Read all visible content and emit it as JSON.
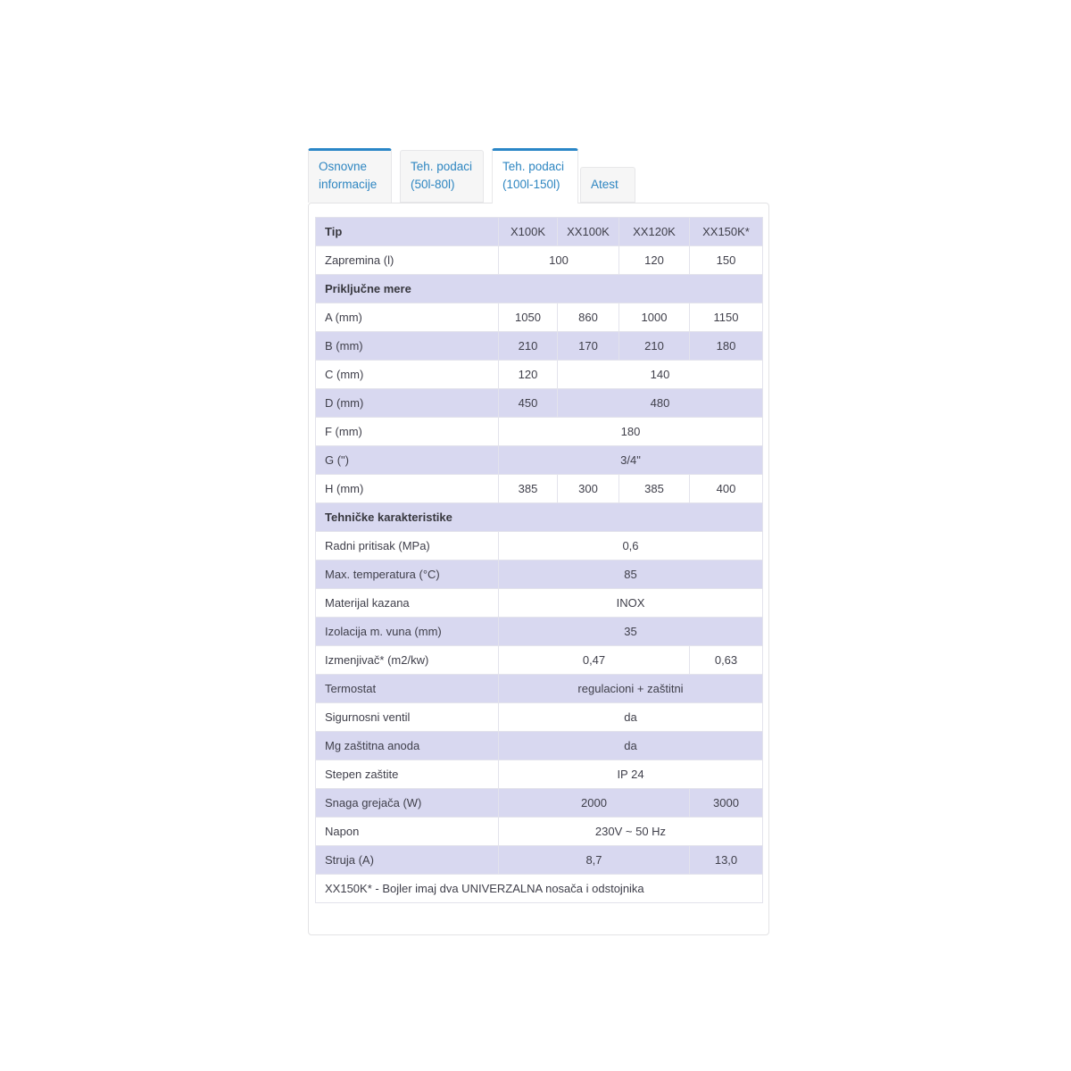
{
  "tabs": [
    {
      "line1": "Osnovne",
      "line2": "informacije"
    },
    {
      "line1": "Teh. podaci",
      "line2": "(50l-80l)"
    },
    {
      "line1": "Teh. podaci",
      "line2": "(100l-150l)"
    },
    {
      "line1": "Atest",
      "line2": ""
    }
  ],
  "colors": {
    "accent_blue": "#2a86c7",
    "tab_text": "#2e86c1",
    "row_lavender": "#d8d8f0",
    "row_white": "#ffffff",
    "cell_border": "#e3e3ec",
    "text": "#3f3f4a"
  },
  "table": {
    "columns": [
      "Tip",
      "X100K",
      "XX100K",
      "XX120K",
      "XX150K*"
    ],
    "rows": [
      {
        "type": "header",
        "label": "Tip",
        "cells": [
          {
            "text": "X100K",
            "span": 1
          },
          {
            "text": "XX100K",
            "span": 1
          },
          {
            "text": "XX120K",
            "span": 1
          },
          {
            "text": "XX150K*",
            "span": 1
          }
        ]
      },
      {
        "type": "data",
        "label": "Zapremina (l)",
        "cells": [
          {
            "text": "100",
            "span": 2
          },
          {
            "text": "120",
            "span": 1
          },
          {
            "text": "150",
            "span": 1
          }
        ]
      },
      {
        "type": "section",
        "label": "Priključne mere"
      },
      {
        "type": "data",
        "label": "A (mm)",
        "cells": [
          {
            "text": "1050",
            "span": 1
          },
          {
            "text": "860",
            "span": 1
          },
          {
            "text": "1000",
            "span": 1
          },
          {
            "text": "1150",
            "span": 1
          }
        ]
      },
      {
        "type": "data",
        "label": "B (mm)",
        "cells": [
          {
            "text": "210",
            "span": 1
          },
          {
            "text": "170",
            "span": 1
          },
          {
            "text": "210",
            "span": 1
          },
          {
            "text": "180",
            "span": 1
          }
        ]
      },
      {
        "type": "data",
        "label": "C (mm)",
        "cells": [
          {
            "text": "120",
            "span": 1
          },
          {
            "text": "140",
            "span": 3
          }
        ]
      },
      {
        "type": "data",
        "label": "D (mm)",
        "cells": [
          {
            "text": "450",
            "span": 1
          },
          {
            "text": "480",
            "span": 3
          }
        ]
      },
      {
        "type": "data",
        "label": "F (mm)",
        "cells": [
          {
            "text": "180",
            "span": 4
          }
        ]
      },
      {
        "type": "data",
        "label": "G (\")",
        "cells": [
          {
            "text": "3/4\"",
            "span": 4
          }
        ]
      },
      {
        "type": "data",
        "label": "H (mm)",
        "cells": [
          {
            "text": "385",
            "span": 1
          },
          {
            "text": "300",
            "span": 1
          },
          {
            "text": "385",
            "span": 1
          },
          {
            "text": "400",
            "span": 1
          }
        ]
      },
      {
        "type": "section",
        "label": "Tehničke karakteristike"
      },
      {
        "type": "data",
        "label": "Radni pritisak (MPa)",
        "cells": [
          {
            "text": "0,6",
            "span": 4
          }
        ]
      },
      {
        "type": "data",
        "label": "Max. temperatura (°C)",
        "cells": [
          {
            "text": "85",
            "span": 4
          }
        ]
      },
      {
        "type": "data",
        "label": "Materijal kazana",
        "cells": [
          {
            "text": "INOX",
            "span": 4
          }
        ]
      },
      {
        "type": "data",
        "label": "Izolacija m. vuna (mm)",
        "cells": [
          {
            "text": "35",
            "span": 4
          }
        ]
      },
      {
        "type": "data",
        "label": "Izmenjivač* (m2/kw)",
        "cells": [
          {
            "text": "0,47",
            "span": 3
          },
          {
            "text": "0,63",
            "span": 1
          }
        ]
      },
      {
        "type": "data",
        "label": "Termostat",
        "cells": [
          {
            "text": "regulacioni + zaštitni",
            "span": 4
          }
        ]
      },
      {
        "type": "data",
        "label": "Sigurnosni ventil",
        "cells": [
          {
            "text": "da",
            "span": 4
          }
        ]
      },
      {
        "type": "data",
        "label": "Mg zaštitna anoda",
        "cells": [
          {
            "text": "da",
            "span": 4
          }
        ]
      },
      {
        "type": "data",
        "label": "Stepen zaštite",
        "cells": [
          {
            "text": "IP 24",
            "span": 4
          }
        ]
      },
      {
        "type": "data",
        "label": "Snaga grejača (W)",
        "cells": [
          {
            "text": "2000",
            "span": 3
          },
          {
            "text": "3000",
            "span": 1
          }
        ]
      },
      {
        "type": "data",
        "label": "Napon",
        "cells": [
          {
            "text": "230V ~ 50 Hz",
            "span": 4
          }
        ]
      },
      {
        "type": "data",
        "label": "Struja (A)",
        "cells": [
          {
            "text": "8,7",
            "span": 3
          },
          {
            "text": "13,0",
            "span": 1
          }
        ]
      },
      {
        "type": "footnote",
        "label": "XX150K* - Bojler imaj dva UNIVERZALNA nosača i odstojnika"
      }
    ]
  }
}
